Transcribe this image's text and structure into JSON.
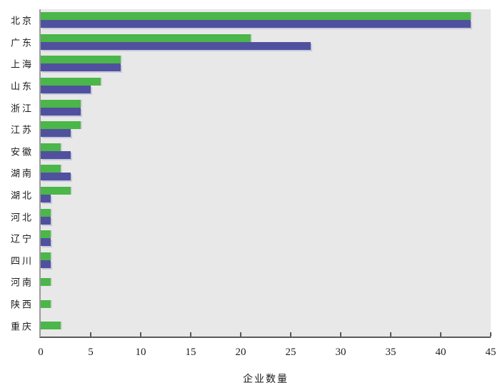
{
  "chart_data": {
    "type": "bar",
    "orientation": "horizontal",
    "title": "",
    "xlabel": "企业数量",
    "ylabel": "",
    "categories": [
      "北京",
      "广东",
      "上海",
      "山东",
      "浙江",
      "江苏",
      "安徽",
      "湖南",
      "湖北",
      "河北",
      "辽宁",
      "四川",
      "河南",
      "陕西",
      "重庆"
    ],
    "series": [
      {
        "name": "green",
        "color": "#4bb649",
        "values": [
          43,
          21,
          8,
          6,
          4,
          4,
          2,
          2,
          3,
          1,
          1,
          1,
          1,
          1,
          2
        ]
      },
      {
        "name": "blue",
        "color": "#50519e",
        "values": [
          43,
          27,
          8,
          5,
          4,
          3,
          3,
          3,
          1,
          1,
          1,
          1,
          0,
          0,
          0
        ]
      }
    ],
    "x_ticks": [
      0,
      5,
      10,
      15,
      20,
      25,
      30,
      35,
      40,
      45
    ],
    "xlim": [
      0,
      45
    ],
    "grid": false,
    "legend": "none",
    "plot_background": "#e8e8e8",
    "page_background": "#ffffff",
    "axis_line_color": "#595959"
  }
}
